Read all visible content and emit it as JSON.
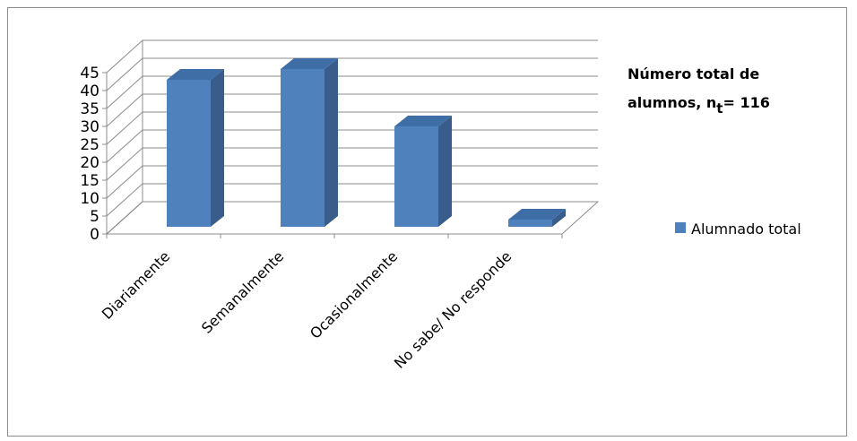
{
  "chart_data": {
    "type": "bar",
    "categories": [
      "Diariamente",
      "Semanalmente",
      "Ocasionalmente",
      "No sabe/ No responde"
    ],
    "series": [
      {
        "name": "Alumnado total",
        "values": [
          41,
          44,
          28,
          2
        ],
        "color": "#4f81bd"
      }
    ],
    "ylim": [
      0,
      45
    ],
    "yticks": [
      0,
      5,
      10,
      15,
      20,
      25,
      30,
      35,
      40,
      45
    ],
    "grid": true,
    "legend": "right",
    "annotation": {
      "line1": "Número total de",
      "line2_prefix": "alumnos, n",
      "line2_subscript": "t",
      "line2_suffix": "= 116"
    }
  }
}
